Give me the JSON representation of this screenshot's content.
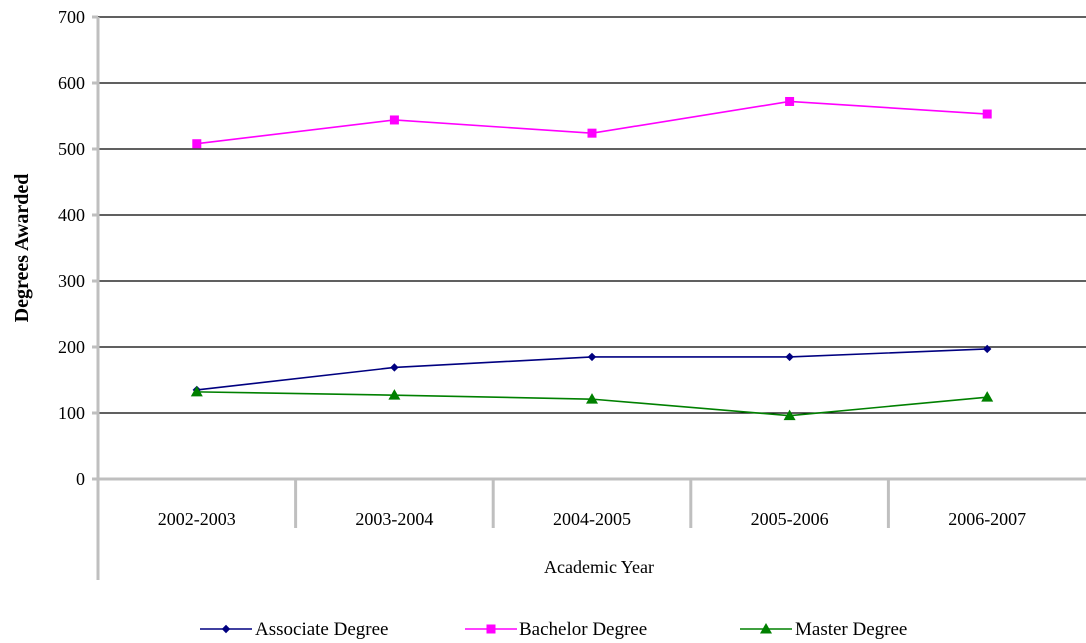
{
  "chart_data": {
    "type": "line",
    "title": "",
    "xlabel": "Academic Year",
    "ylabel": "Degrees Awarded",
    "categories": [
      "2002-2003",
      "2003-2004",
      "2004-2005",
      "2005-2006",
      "2006-2007"
    ],
    "ylim": [
      0,
      700
    ],
    "yticks": [
      0,
      100,
      200,
      300,
      400,
      500,
      600,
      700
    ],
    "grid": true,
    "legend": "bottom",
    "series": [
      {
        "name": "Associate Degree",
        "values": [
          135,
          169,
          185,
          185,
          197
        ],
        "color": "#000080",
        "marker": "diamond"
      },
      {
        "name": "Bachelor Degree",
        "values": [
          508,
          544,
          524,
          572,
          553
        ],
        "color": "#ff00ff",
        "marker": "square"
      },
      {
        "name": "Master Degree",
        "values": [
          132,
          127,
          121,
          96,
          124
        ],
        "color": "#008000",
        "marker": "triangle"
      }
    ]
  }
}
